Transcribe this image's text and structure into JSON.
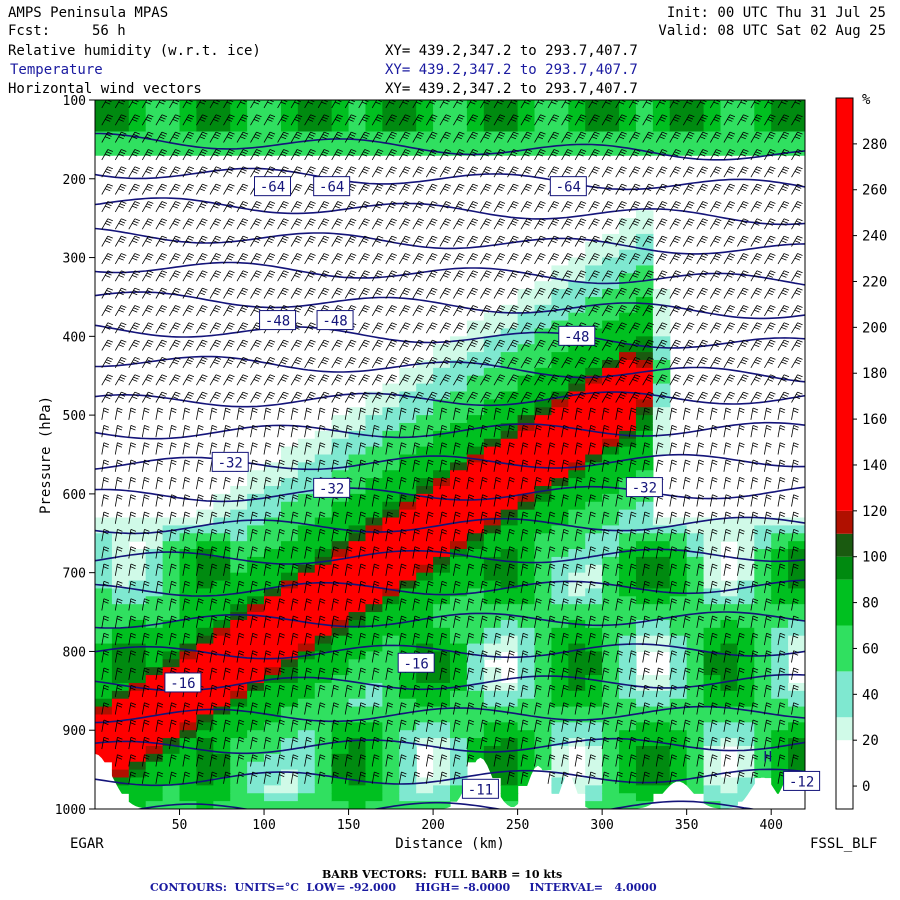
{
  "header": {
    "model": "AMPS Peninsula MPAS",
    "fcst_label": "Fcst:",
    "fcst_value": "56 h",
    "init": "Init: 00 UTC Thu 31 Jul 25",
    "valid": "Valid: 08 UTC Sat 02 Aug 25",
    "fields": [
      {
        "name": "Relative humidity (w.r.t. ice)",
        "xy": "XY= 439.2,347.2 to 293.7,407.7"
      },
      {
        "name": "Temperature",
        "xy": "XY= 439.2,347.2 to 293.7,407.7"
      },
      {
        "name": "Horizontal wind vectors",
        "xy": "XY= 439.2,347.2 to 293.7,407.7"
      }
    ]
  },
  "footer": {
    "barb": "BARB VECTORS:  FULL BARB = 10 kts",
    "contours": "CONTOURS:  UNITS=°C  LOW= -92.000     HIGH= -8.0000     INTERVAL=   4.0000"
  },
  "colors": {
    "rh_scale": [
      "#ffffff",
      "#ffffff",
      "#d0fae8",
      "#7fe8d0",
      "#30e060",
      "#00c020",
      "#008a10",
      "#1a5a10",
      "#b01000",
      "#ff0000"
    ],
    "contour": "#14147a",
    "barb": "#000000",
    "terrain": "#ffffff"
  },
  "chart_data": {
    "type": "heatmap",
    "title": "Relative humidity (w.r.t. ice), Temperature, Horizontal wind vectors",
    "xlabel": "Distance (km)",
    "ylabel": "Pressure (hPa)",
    "x_ticks": [
      50,
      100,
      150,
      200,
      250,
      300,
      350,
      400
    ],
    "x_range": [
      0,
      420
    ],
    "y_ticks": [
      100,
      200,
      300,
      400,
      500,
      600,
      700,
      800,
      900,
      1000
    ],
    "y_range": [
      100,
      1000
    ],
    "y_scale": "linear, inverted",
    "left_endpoint": "EGAR",
    "right_endpoint": "FSSL_BLF",
    "colorbar": {
      "unit": "%",
      "ticks": [
        0,
        20,
        40,
        60,
        80,
        100,
        120,
        140,
        160,
        180,
        200,
        220,
        240,
        260,
        280
      ]
    },
    "temperature_labels": [
      {
        "text": "-64",
        "x": 105,
        "p": 210
      },
      {
        "text": "-64",
        "x": 140,
        "p": 210
      },
      {
        "text": "-64",
        "x": 280,
        "p": 210
      },
      {
        "text": "-48",
        "x": 108,
        "p": 380
      },
      {
        "text": "-48",
        "x": 142,
        "p": 380
      },
      {
        "text": "-48",
        "x": 285,
        "p": 400
      },
      {
        "text": "-32",
        "x": 80,
        "p": 560
      },
      {
        "text": "-32",
        "x": 140,
        "p": 593
      },
      {
        "text": "-32",
        "x": 325,
        "p": 592
      },
      {
        "text": "-16",
        "x": 52,
        "p": 840
      },
      {
        "text": "-16",
        "x": 190,
        "p": 815
      },
      {
        "text": "-11",
        "x": 228,
        "p": 975
      },
      {
        "text": "-12",
        "x": 418,
        "p": 965
      }
    ],
    "markers": [
      {
        "text": "H",
        "x": 398,
        "p": 940
      }
    ]
  }
}
